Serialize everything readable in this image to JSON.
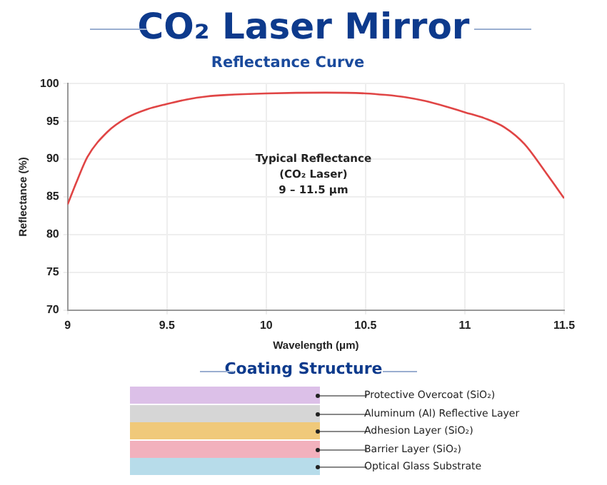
{
  "chart_data": {
    "type": "line",
    "title": "CO₂ Laser Mirror",
    "subtitle": "Reflectance Curve",
    "xlabel": "Wavelength (μm)",
    "ylabel": "Reflectance (%)",
    "series": [
      {
        "color": "#e04545",
        "x": [
          9,
          9.05,
          9.1,
          9.2,
          9.3,
          9.4,
          9.5,
          9.6,
          9.7,
          9.8,
          10,
          10.3,
          10.5,
          10.6,
          10.7,
          10.8,
          10.9,
          11,
          11.1,
          11.2,
          11.3,
          11.4,
          11.5
        ],
        "values": [
          84,
          87.3,
          90.3,
          93.6,
          95.5,
          96.6,
          97.3,
          97.9,
          98.3,
          98.5,
          98.7,
          98.8,
          98.7,
          98.5,
          98.2,
          97.7,
          97,
          96.2,
          95.4,
          94.2,
          92,
          88.5,
          84.8
        ]
      }
    ],
    "xlim": [
      9,
      11.5
    ],
    "xticks": [
      9,
      9.5,
      10,
      10.5,
      11,
      11.5
    ],
    "ylim": [
      70,
      100
    ],
    "yticks": [
      70,
      75,
      80,
      85,
      90,
      95,
      100
    ],
    "grid": true,
    "legend": false,
    "marker": "none",
    "line_style": "solid",
    "annotations": [
      "Typical Reflectance",
      "(CO₂ Laser)",
      "9 – 11.5 μm",
      "Coating Structure",
      "Protective Overcoat (SiO₂)",
      "Aluminum (Al) Reflective Layer",
      "Adhesion Layer (SiO₂)",
      "Barrier Layer (SiO₂)",
      "Optical Glass Substrate"
    ]
  }
}
